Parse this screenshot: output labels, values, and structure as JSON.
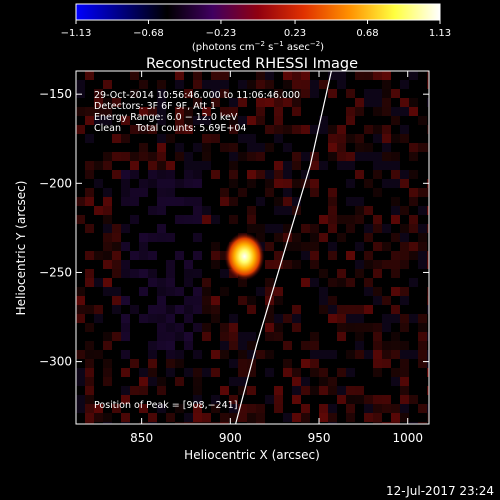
{
  "colorbar": {
    "ticks": [
      "−1.13",
      "−0.68",
      "−0.23",
      "0.23",
      "0.68",
      "1.13"
    ],
    "tick_values": [
      -1.13,
      -0.68,
      -0.23,
      0.23,
      0.68,
      1.13
    ],
    "range": [
      -1.13,
      1.13
    ],
    "units_main": "(photons cm",
    "units_exp1": "−2",
    "units_mid": " s",
    "units_exp2": "−1",
    "units_tail": " asec",
    "units_exp3": "−2",
    "units_close": ")",
    "colors": [
      "#0000ff",
      "#000080",
      "#000000",
      "#400060",
      "#900010",
      "#e03000",
      "#ff9000",
      "#ffff40",
      "#ffffff"
    ]
  },
  "chart_data": {
    "type": "heatmap",
    "title": "Reconstructed RHESSI Image",
    "xlabel": "Heliocentric X (arcsec)",
    "ylabel": "Heliocentric Y (arcsec)",
    "xlim": [
      813,
      1012
    ],
    "ylim": [
      -335,
      -137
    ],
    "x_ticks": [
      850,
      900,
      950,
      1000
    ],
    "x_tick_labels": [
      "850",
      "900",
      "950",
      "1000"
    ],
    "y_ticks": [
      -150,
      -200,
      -250,
      -300
    ],
    "y_tick_labels": [
      "−150",
      "−200",
      "−250",
      "−300"
    ],
    "peak": {
      "x": 908,
      "y": -241,
      "value": 1.13
    },
    "limb_curve": {
      "x": [
        903,
        915,
        930,
        945,
        957
      ],
      "y": [
        -335,
        -290,
        -240,
        -190,
        -137
      ]
    },
    "annotations": {
      "time_range": "29-Oct-2014 10:56:46.000 to 11:06:46.000",
      "detectors": "Detectors: 3F 6F 9F, Att 1",
      "energy": "Energy Range: 6.0 − 12.0 keV",
      "clean": "Clean     Total counts: 5.69E+04",
      "peak_label": "Position of Peak = [908,−241]"
    }
  },
  "footer": {
    "timestamp": "12-Jul-2017 23:24"
  }
}
